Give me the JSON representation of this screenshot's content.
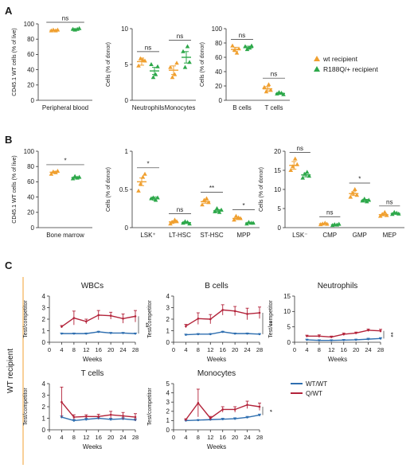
{
  "colors": {
    "orange": "#F0A030",
    "green": "#2DA84A",
    "blue": "#2F6FB0",
    "red": "#B3233A"
  },
  "panels": {
    "a": "A",
    "b": "B",
    "c": "C"
  },
  "legend_ab": [
    {
      "label": "wt recipient",
      "marker": "triangle-up",
      "color": "#F0A030"
    },
    {
      "label": "R188Q/+ recipient",
      "marker": "triangle-up",
      "color": "#2DA84A"
    }
  ],
  "legend_c": [
    {
      "label": "WT/WT",
      "color": "#2F6FB0"
    },
    {
      "label": "Q/WT",
      "color": "#B3233A"
    }
  ],
  "side_label": "WT recipient",
  "chart_data": [
    {
      "id": "A1",
      "type": "scatter",
      "ylabel": "CD45.1 WT cells (% of live)",
      "ylim": [
        0,
        100
      ],
      "yticks": [
        0,
        20,
        40,
        60,
        80,
        100
      ],
      "categories": [
        "Peripheral blood"
      ],
      "groups": [
        {
          "cat": 0,
          "series": "wt",
          "values": [
            91,
            92,
            91,
            92
          ],
          "mean": 91.5,
          "sem": 0.6
        },
        {
          "cat": 0,
          "series": "mut",
          "values": [
            93,
            92,
            93,
            94
          ],
          "mean": 93,
          "sem": 0.6
        }
      ],
      "annotations": [
        {
          "cats": [
            0
          ],
          "text": "ns"
        }
      ]
    },
    {
      "id": "A2",
      "type": "scatter",
      "ylabel": "Cells (% of donor)",
      "ylim": [
        0,
        10
      ],
      "yticks": [
        0,
        5,
        10
      ],
      "categories": [
        "Neutrophils",
        "Monocytes"
      ],
      "groups": [
        {
          "cat": 0,
          "series": "wt",
          "values": [
            4.8,
            5.8,
            5.6,
            5.5
          ],
          "mean": 5.4,
          "sem": 0.5
        },
        {
          "cat": 0,
          "series": "mut",
          "values": [
            5.0,
            3.2,
            3.6,
            4.7
          ],
          "mean": 4.1,
          "sem": 0.5
        },
        {
          "cat": 1,
          "series": "wt",
          "values": [
            4.6,
            3.2,
            3.6,
            5.2
          ],
          "mean": 4.2,
          "sem": 0.6
        },
        {
          "cat": 1,
          "series": "mut",
          "values": [
            6.8,
            4.6,
            7.5,
            5.3
          ],
          "mean": 6.0,
          "sem": 0.8
        }
      ],
      "annotations": [
        {
          "cats": [
            0
          ],
          "text": "ns"
        },
        {
          "cats": [
            1
          ],
          "text": "ns"
        }
      ]
    },
    {
      "id": "A3",
      "type": "scatter",
      "ylabel": "Cells (% of donor)",
      "ylim": [
        0,
        100
      ],
      "yticks": [
        0,
        20,
        40,
        60,
        80,
        100
      ],
      "categories": [
        "B cells",
        "T cells"
      ],
      "groups": [
        {
          "cat": 0,
          "series": "wt",
          "values": [
            76,
            70,
            66,
            72
          ],
          "mean": 71,
          "sem": 3
        },
        {
          "cat": 0,
          "series": "mut",
          "values": [
            75,
            71,
            73,
            76
          ],
          "mean": 73.5,
          "sem": 2
        },
        {
          "cat": 1,
          "series": "wt",
          "values": [
            18,
            12,
            22,
            14
          ],
          "mean": 16,
          "sem": 3
        },
        {
          "cat": 1,
          "series": "mut",
          "values": [
            9,
            11,
            10,
            8
          ],
          "mean": 9.5,
          "sem": 1
        }
      ],
      "annotations": [
        {
          "cats": [
            0
          ],
          "text": "ns"
        },
        {
          "cats": [
            1
          ],
          "text": "ns"
        }
      ]
    },
    {
      "id": "B1",
      "type": "scatter",
      "ylabel": "CD45.1 WT cells (% of live)",
      "ylim": [
        0,
        100
      ],
      "yticks": [
        0,
        20,
        40,
        60,
        80,
        100
      ],
      "categories": [
        "Bone marrow"
      ],
      "groups": [
        {
          "cat": 0,
          "series": "wt",
          "values": [
            70,
            73,
            72,
            74
          ],
          "mean": 72.5,
          "sem": 1.2
        },
        {
          "cat": 0,
          "series": "mut",
          "values": [
            64,
            67,
            65,
            66
          ],
          "mean": 65.5,
          "sem": 1
        }
      ],
      "annotations": [
        {
          "cats": [
            0
          ],
          "text": "*"
        }
      ]
    },
    {
      "id": "B2",
      "type": "scatter",
      "ylabel": "Cells (% of donor)",
      "ylim": [
        0,
        1.0
      ],
      "yticks": [
        0,
        0.5,
        1.0
      ],
      "categories": [
        "LSK⁺",
        "LT-HSC",
        "ST-HSC",
        "MPP"
      ],
      "groups": [
        {
          "cat": 0,
          "series": "wt",
          "values": [
            0.48,
            0.57,
            0.66,
            0.7
          ],
          "mean": 0.6,
          "sem": 0.05
        },
        {
          "cat": 0,
          "series": "mut",
          "values": [
            0.38,
            0.39,
            0.36,
            0.39
          ],
          "mean": 0.38,
          "sem": 0.02
        },
        {
          "cat": 1,
          "series": "wt",
          "values": [
            0.05,
            0.07,
            0.1,
            0.08
          ],
          "mean": 0.075,
          "sem": 0.012
        },
        {
          "cat": 1,
          "series": "mut",
          "values": [
            0.06,
            0.08,
            0.07,
            0.05
          ],
          "mean": 0.065,
          "sem": 0.01
        },
        {
          "cat": 2,
          "series": "wt",
          "values": [
            0.3,
            0.36,
            0.38,
            0.33
          ],
          "mean": 0.34,
          "sem": 0.02
        },
        {
          "cat": 2,
          "series": "mut",
          "values": [
            0.21,
            0.25,
            0.2,
            0.23
          ],
          "mean": 0.22,
          "sem": 0.015
        },
        {
          "cat": 3,
          "series": "wt",
          "values": [
            0.1,
            0.15,
            0.13,
            0.12
          ],
          "mean": 0.12,
          "sem": 0.015
        },
        {
          "cat": 3,
          "series": "mut",
          "values": [
            0.05,
            0.07,
            0.06,
            0.06
          ],
          "mean": 0.06,
          "sem": 0.005
        }
      ],
      "annotations": [
        {
          "cats": [
            0
          ],
          "text": "*"
        },
        {
          "cats": [
            1
          ],
          "text": "ns"
        },
        {
          "cats": [
            2
          ],
          "text": "**"
        },
        {
          "cats": [
            3
          ],
          "text": "*"
        }
      ]
    },
    {
      "id": "B3",
      "type": "scatter",
      "ylabel": "Cells (% of donor)",
      "ylim": [
        0,
        20
      ],
      "yticks": [
        0,
        5,
        10,
        15,
        20
      ],
      "categories": [
        "LSK⁻",
        "CMP",
        "GMP",
        "MEP"
      ],
      "groups": [
        {
          "cat": 0,
          "series": "wt",
          "values": [
            15,
            16,
            18,
            16.5
          ],
          "mean": 16.3,
          "sem": 1
        },
        {
          "cat": 0,
          "series": "mut",
          "values": [
            13,
            14,
            14.5,
            13.5
          ],
          "mean": 13.8,
          "sem": 0.5
        },
        {
          "cat": 1,
          "series": "wt",
          "values": [
            0.8,
            1,
            1.2,
            0.9
          ],
          "mean": 1,
          "sem": 0.1
        },
        {
          "cat": 1,
          "series": "mut",
          "values": [
            0.6,
            0.8,
            0.7,
            0.9
          ],
          "mean": 0.75,
          "sem": 0.1
        },
        {
          "cat": 2,
          "series": "wt",
          "values": [
            8,
            9,
            10,
            8.5
          ],
          "mean": 8.9,
          "sem": 0.5
        },
        {
          "cat": 2,
          "series": "mut",
          "values": [
            7,
            7.5,
            6.8,
            7.2
          ],
          "mean": 7.1,
          "sem": 0.3
        },
        {
          "cat": 3,
          "series": "wt",
          "values": [
            3,
            3.5,
            4,
            3.2
          ],
          "mean": 3.4,
          "sem": 0.3
        },
        {
          "cat": 3,
          "series": "mut",
          "values": [
            3.5,
            4,
            3.8,
            3.6
          ],
          "mean": 3.7,
          "sem": 0.2
        }
      ],
      "annotations": [
        {
          "cats": [
            0
          ],
          "text": "ns"
        },
        {
          "cats": [
            1
          ],
          "text": "ns"
        },
        {
          "cats": [
            2
          ],
          "text": "*"
        },
        {
          "cats": [
            3
          ],
          "text": "ns"
        }
      ]
    },
    {
      "id": "C1",
      "type": "line",
      "title": "WBCs",
      "xlabel": "Weeks",
      "ylabel": "Test/competitor",
      "ylim": [
        0,
        4
      ],
      "yticks": [
        0,
        1,
        2,
        3,
        4
      ],
      "x": [
        0,
        4,
        8,
        12,
        16,
        20,
        24,
        28
      ],
      "xticks": [
        0,
        4,
        8,
        12,
        16,
        20,
        24,
        28
      ],
      "series": [
        {
          "name": "WT/WT",
          "x": [
            4,
            8,
            12,
            16,
            20,
            24,
            28
          ],
          "values": [
            0.75,
            0.75,
            0.75,
            0.9,
            0.8,
            0.8,
            0.75
          ],
          "err": [
            0.05,
            0.05,
            0.05,
            0.05,
            0.05,
            0.05,
            0.05
          ]
        },
        {
          "name": "Q/WT",
          "x": [
            4,
            8,
            12,
            16,
            20,
            24,
            28
          ],
          "values": [
            1.35,
            2.1,
            1.8,
            2.35,
            2.3,
            2.05,
            2.25
          ],
          "err": [
            0.1,
            0.6,
            0.2,
            0.4,
            0.3,
            0.4,
            0.5
          ]
        }
      ],
      "significance": "**"
    },
    {
      "id": "C2",
      "type": "line",
      "title": "B cells",
      "xlabel": "Weeks",
      "ylabel": "Test/competitor",
      "ylim": [
        0,
        4
      ],
      "yticks": [
        0,
        1,
        2,
        3,
        4
      ],
      "x": [
        0,
        4,
        8,
        12,
        16,
        20,
        24,
        28
      ],
      "xticks": [
        0,
        4,
        8,
        12,
        16,
        20,
        24,
        28
      ],
      "series": [
        {
          "name": "WT/WT",
          "x": [
            4,
            8,
            12,
            16,
            20,
            24,
            28
          ],
          "values": [
            0.65,
            0.7,
            0.7,
            0.9,
            0.75,
            0.75,
            0.7
          ],
          "err": [
            0.05,
            0.05,
            0.05,
            0.05,
            0.05,
            0.05,
            0.05
          ]
        },
        {
          "name": "Q/WT",
          "x": [
            4,
            8,
            12,
            16,
            20,
            24,
            28
          ],
          "values": [
            1.4,
            2.05,
            2.0,
            2.8,
            2.7,
            2.45,
            2.55
          ],
          "err": [
            0.15,
            0.5,
            0.4,
            0.45,
            0.4,
            0.5,
            0.5
          ]
        }
      ],
      "significance": "**"
    },
    {
      "id": "C3",
      "type": "line",
      "title": "Neutrophils",
      "xlabel": "Weeks",
      "ylabel": "Test/competitor",
      "ylim": [
        0,
        15
      ],
      "yticks": [
        0,
        5,
        10,
        15
      ],
      "x": [
        0,
        4,
        8,
        12,
        16,
        20,
        24,
        28
      ],
      "xticks": [
        0,
        4,
        8,
        12,
        16,
        20,
        24,
        28
      ],
      "series": [
        {
          "name": "WT/WT",
          "x": [
            4,
            8,
            12,
            16,
            20,
            24,
            28
          ],
          "values": [
            0.8,
            0.6,
            0.6,
            0.7,
            0.8,
            1.0,
            1.2
          ],
          "err": [
            0.2,
            0.2,
            0.2,
            0.2,
            0.2,
            0.3,
            0.3
          ]
        },
        {
          "name": "Q/WT",
          "x": [
            4,
            8,
            12,
            16,
            20,
            24,
            28
          ],
          "values": [
            2.0,
            2.0,
            1.7,
            2.6,
            3.0,
            3.9,
            3.7
          ],
          "err": [
            0.3,
            0.4,
            0.3,
            0.4,
            0.3,
            0.4,
            0.5
          ]
        }
      ],
      "significance": "**"
    },
    {
      "id": "C4",
      "type": "line",
      "title": "T cells",
      "xlabel": "Weeks",
      "ylabel": "Test/competitor",
      "ylim": [
        0,
        4
      ],
      "yticks": [
        0,
        1,
        2,
        3,
        4
      ],
      "x": [
        0,
        4,
        8,
        12,
        16,
        20,
        24,
        28
      ],
      "xticks": [
        0,
        4,
        8,
        12,
        16,
        20,
        24,
        28
      ],
      "series": [
        {
          "name": "WT/WT",
          "x": [
            4,
            8,
            12,
            16,
            20,
            24,
            28
          ],
          "values": [
            1.1,
            0.8,
            0.9,
            1.0,
            0.9,
            0.95,
            0.85
          ],
          "err": [
            0.1,
            0.1,
            0.1,
            0.1,
            0.1,
            0.1,
            0.1
          ]
        },
        {
          "name": "Q/WT",
          "x": [
            4,
            8,
            12,
            16,
            20,
            24,
            28
          ],
          "values": [
            2.4,
            1.1,
            1.15,
            1.15,
            1.3,
            1.2,
            1.1
          ],
          "err": [
            1.3,
            0.2,
            0.15,
            0.2,
            0.3,
            0.3,
            0.3
          ]
        }
      ],
      "significance": ""
    },
    {
      "id": "C5",
      "type": "line",
      "title": "Monocytes",
      "xlabel": "Weeks",
      "ylabel": "Test/competitor",
      "ylim": [
        0,
        5
      ],
      "yticks": [
        0,
        1,
        2,
        3,
        4,
        5
      ],
      "x": [
        0,
        4,
        8,
        12,
        16,
        20,
        24,
        28
      ],
      "xticks": [
        0,
        4,
        8,
        12,
        16,
        20,
        24,
        28
      ],
      "series": [
        {
          "name": "WT/WT",
          "x": [
            4,
            8,
            12,
            16,
            20,
            24,
            28
          ],
          "values": [
            1.0,
            1.05,
            1.1,
            1.15,
            1.2,
            1.35,
            1.6
          ],
          "err": [
            0.05,
            0.05,
            0.05,
            0.1,
            0.1,
            0.1,
            0.1
          ]
        },
        {
          "name": "Q/WT",
          "x": [
            4,
            8,
            12,
            16,
            20,
            24,
            28
          ],
          "values": [
            1.1,
            2.9,
            1.25,
            2.2,
            2.2,
            2.7,
            2.5
          ],
          "err": [
            0.1,
            1.5,
            0.2,
            0.3,
            0.3,
            0.4,
            0.4
          ]
        }
      ],
      "significance": "*"
    }
  ]
}
